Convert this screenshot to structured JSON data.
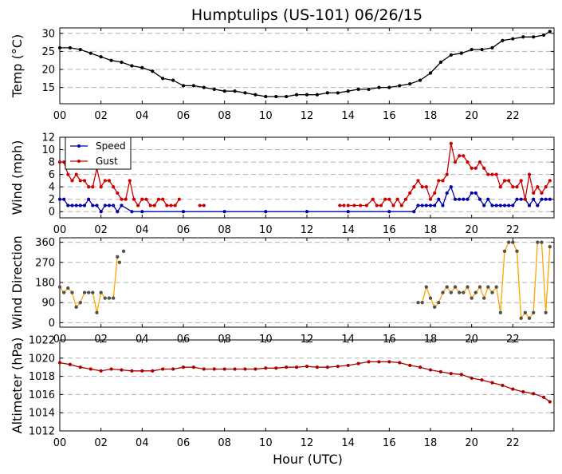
{
  "chart_data": {
    "type": "line",
    "title": "Humptulips (US-101) 06/26/15",
    "xlabel": "Hour (UTC)",
    "x_tick_labels": [
      "00",
      "02",
      "04",
      "06",
      "08",
      "10",
      "12",
      "14",
      "16",
      "18",
      "20",
      "22"
    ],
    "x_range_hours": [
      0,
      24
    ],
    "grid": "horizontal dashed",
    "panels": [
      {
        "ylabel": "Temp (°C)",
        "ylim": [
          10.5,
          31.5
        ],
        "yticks": [
          15,
          20,
          25,
          30
        ],
        "legend": null,
        "series": [
          {
            "color": "#000000",
            "markers": true,
            "x": [
              0.0,
              0.5,
              1.0,
              1.5,
              2.0,
              2.5,
              3.0,
              3.5,
              4.0,
              4.5,
              5.0,
              5.5,
              6.0,
              6.5,
              7.0,
              7.5,
              8.0,
              8.5,
              9.0,
              9.5,
              10.0,
              10.5,
              11.0,
              11.5,
              12.0,
              12.5,
              13.0,
              13.5,
              14.0,
              14.5,
              15.0,
              15.5,
              16.0,
              16.5,
              17.0,
              17.5,
              18.0,
              18.5,
              19.0,
              19.5,
              20.0,
              20.5,
              21.0,
              21.5,
              22.0,
              22.5,
              23.0,
              23.5,
              23.8
            ],
            "y": [
              26,
              26,
              25.5,
              24.5,
              23.5,
              22.5,
              22,
              21,
              20.5,
              19.5,
              17.5,
              17,
              15.5,
              15.5,
              15,
              14.5,
              14,
              14,
              13.5,
              13,
              12.5,
              12.5,
              12.5,
              13,
              13,
              13,
              13.5,
              13.5,
              14,
              14.5,
              14.5,
              15,
              15,
              15.5,
              16,
              17,
              19,
              22,
              24,
              24.5,
              25.5,
              25.5,
              26,
              28,
              28.5,
              29,
              29,
              29.5,
              30.5
            ]
          }
        ]
      },
      {
        "ylabel": "Wind (mph)",
        "ylim": [
          -1,
          12
        ],
        "yticks": [
          0,
          2,
          4,
          6,
          8,
          10,
          12
        ],
        "legend": {
          "placement": "top-left",
          "entries": [
            {
              "label": "Speed",
              "color": "#0000aa"
            },
            {
              "label": "Gust",
              "color": "#cc0000"
            }
          ]
        },
        "series": [
          {
            "name": "Speed",
            "color": "#0000aa",
            "markers": true,
            "x": [
              0.0,
              0.2,
              0.4,
              0.6,
              0.8,
              1.0,
              1.2,
              1.4,
              1.6,
              1.8,
              2.0,
              2.2,
              2.4,
              2.6,
              2.8,
              3.0,
              3.5,
              4.0,
              6.0,
              8.0,
              10.0,
              12.0,
              14.0,
              16.0,
              17.2,
              17.4,
              17.6,
              17.8,
              18.0,
              18.2,
              18.4,
              18.6,
              18.8,
              19.0,
              19.2,
              19.4,
              19.6,
              19.8,
              20.0,
              20.2,
              20.4,
              20.6,
              20.8,
              21.0,
              21.2,
              21.4,
              21.6,
              21.8,
              22.0,
              22.2,
              22.4,
              22.6,
              22.8,
              23.0,
              23.2,
              23.4,
              23.6,
              23.8
            ],
            "y": [
              2,
              2,
              1,
              1,
              1,
              1,
              1,
              2,
              1,
              1,
              0,
              1,
              1,
              1,
              0,
              1,
              0,
              0,
              0,
              0,
              0,
              0,
              0,
              0,
              0,
              1,
              1,
              1,
              1,
              1,
              2,
              1,
              3,
              4,
              2,
              2,
              2,
              2,
              3,
              3,
              2,
              1,
              2,
              1,
              1,
              1,
              1,
              1,
              1,
              2,
              2,
              2,
              1,
              2,
              1,
              2,
              2,
              2
            ]
          },
          {
            "name": "Gust",
            "color": "#cc0000",
            "markers": true,
            "segments": [
              {
                "x": [
                  0.0,
                  0.2,
                  0.4,
                  0.6,
                  0.8,
                  1.0,
                  1.2,
                  1.4,
                  1.6,
                  1.8,
                  2.0,
                  2.2,
                  2.4,
                  2.6,
                  2.8,
                  3.0,
                  3.2,
                  3.4,
                  3.6,
                  3.8,
                  4.0,
                  4.2,
                  4.4,
                  4.6,
                  4.8,
                  5.0,
                  5.2,
                  5.4,
                  5.6,
                  5.8
                ],
                "y": [
                  8,
                  8,
                  6,
                  5,
                  6,
                  5,
                  5,
                  4,
                  4,
                  7,
                  4,
                  5,
                  5,
                  4,
                  3,
                  2,
                  2,
                  5,
                  2,
                  1,
                  2,
                  2,
                  1,
                  1,
                  2,
                  2,
                  1,
                  1,
                  1,
                  2
                ]
              },
              {
                "x": [
                  6.8,
                  7.0
                ],
                "y": [
                  1,
                  1
                ]
              },
              {
                "x": [
                  13.6,
                  13.8
                ],
                "y": [
                  1,
                  1
                ]
              },
              {
                "x": [
                  14.0,
                  14.3,
                  14.6,
                  14.9,
                  15.2,
                  15.4,
                  15.6,
                  15.8,
                  16.0,
                  16.2,
                  16.4,
                  16.6,
                  16.8,
                  17.0,
                  17.2,
                  17.4,
                  17.6,
                  17.8,
                  18.0,
                  18.2,
                  18.4,
                  18.6,
                  18.8,
                  19.0,
                  19.2,
                  19.4,
                  19.6,
                  19.8,
                  20.0,
                  20.2,
                  20.4,
                  20.6,
                  20.8,
                  21.0,
                  21.2,
                  21.4,
                  21.6,
                  21.8,
                  22.0,
                  22.2,
                  22.4,
                  22.6,
                  22.8,
                  23.0,
                  23.2,
                  23.4,
                  23.6,
                  23.8
                ],
                "y": [
                  1,
                  1,
                  1,
                  1,
                  2,
                  1,
                  1,
                  2,
                  2,
                  1,
                  2,
                  1,
                  2,
                  3,
                  4,
                  5,
                  4,
                  4,
                  2,
                  3,
                  5,
                  5,
                  6,
                  11,
                  8,
                  9,
                  9,
                  8,
                  7,
                  7,
                  8,
                  7,
                  6,
                  6,
                  6,
                  4,
                  5,
                  5,
                  4,
                  4,
                  5,
                  2,
                  6,
                  3,
                  4,
                  3,
                  4,
                  5
                ]
              }
            ]
          }
        ]
      },
      {
        "ylabel": "Wind Direction",
        "ylim": [
          -20,
          380
        ],
        "yticks": [
          0,
          90,
          180,
          270,
          360
        ],
        "legend": null,
        "series": [
          {
            "color": "#ffa500",
            "markers": true,
            "segments": [
              {
                "x": [
                  0.0,
                  0.2,
                  0.4,
                  0.6,
                  0.8,
                  1.0,
                  1.2,
                  1.4,
                  1.6,
                  1.8,
                  2.0,
                  2.2,
                  2.4,
                  2.6,
                  2.8
                ],
                "y": [
                  160,
                  135,
                  155,
                  135,
                  70,
                  90,
                  135,
                  135,
                  135,
                  45,
                  135,
                  110,
                  110,
                  110,
                  295
                ]
              },
              {
                "x": [
                  2.9
                ],
                "y": [
                  270
                ]
              },
              {
                "x": [
                  3.1
                ],
                "y": [
                  320
                ]
              },
              {
                "x": [
                  17.4,
                  17.6,
                  17.8,
                  18.0,
                  18.2,
                  18.4,
                  18.6,
                  18.8,
                  19.0,
                  19.2,
                  19.4,
                  19.6,
                  19.8,
                  20.0,
                  20.2,
                  20.4,
                  20.6,
                  20.8,
                  21.0,
                  21.2,
                  21.4,
                  21.6,
                  21.8,
                  22.0,
                  22.2,
                  22.4,
                  22.6,
                  22.8,
                  23.0,
                  23.2,
                  23.4,
                  23.6,
                  23.8
                ],
                "y": [
                  90,
                  90,
                  160,
                  110,
                  70,
                  90,
                  135,
                  160,
                  135,
                  160,
                  135,
                  135,
                  160,
                  110,
                  135,
                  160,
                  110,
                  160,
                  135,
                  160,
                  45,
                  320,
                  360,
                  360,
                  320,
                  20,
                  45,
                  20,
                  45,
                  360,
                  360,
                  45,
                  340
                ]
              }
            ]
          }
        ]
      },
      {
        "ylabel": "Altimeter (hPa)",
        "ylim": [
          1012,
          1022
        ],
        "yticks": [
          1012,
          1014,
          1016,
          1018,
          1020,
          1022
        ],
        "legend": null,
        "series": [
          {
            "color": "#aa0000",
            "markers": true,
            "x": [
              0.0,
              0.5,
              1.0,
              1.5,
              2.0,
              2.5,
              3.0,
              3.5,
              4.0,
              4.5,
              5.0,
              5.5,
              6.0,
              6.5,
              7.0,
              7.5,
              8.0,
              8.5,
              9.0,
              9.5,
              10.0,
              10.5,
              11.0,
              11.5,
              12.0,
              12.5,
              13.0,
              13.5,
              14.0,
              14.5,
              15.0,
              15.5,
              16.0,
              16.5,
              17.0,
              17.5,
              18.0,
              18.5,
              19.0,
              19.5,
              20.0,
              20.5,
              21.0,
              21.5,
              22.0,
              22.5,
              23.0,
              23.5,
              23.8
            ],
            "y": [
              1019.5,
              1019.3,
              1019.0,
              1018.8,
              1018.6,
              1018.8,
              1018.7,
              1018.6,
              1018.6,
              1018.6,
              1018.8,
              1018.8,
              1019.0,
              1019.0,
              1018.8,
              1018.8,
              1018.8,
              1018.8,
              1018.8,
              1018.8,
              1018.9,
              1018.9,
              1019.0,
              1019.0,
              1019.1,
              1019.0,
              1019.0,
              1019.1,
              1019.2,
              1019.4,
              1019.6,
              1019.6,
              1019.6,
              1019.5,
              1019.2,
              1019.0,
              1018.7,
              1018.5,
              1018.3,
              1018.2,
              1017.8,
              1017.6,
              1017.3,
              1017.0,
              1016.6,
              1016.3,
              1016.1,
              1015.7,
              1015.2
            ]
          }
        ]
      }
    ]
  }
}
